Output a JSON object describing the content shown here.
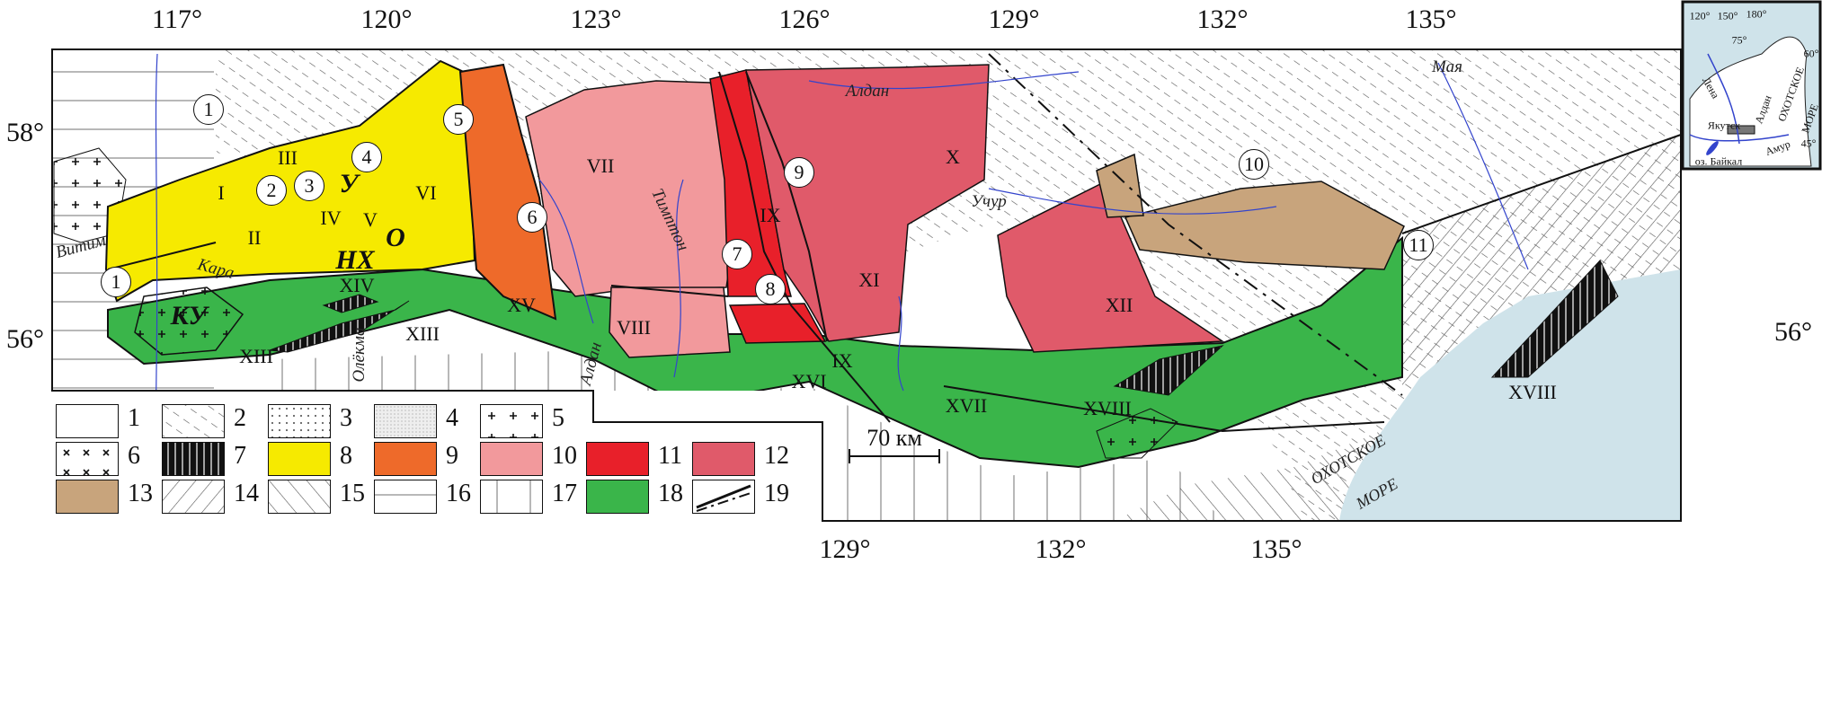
{
  "axes": {
    "top_longitudes": [
      "117°",
      "120°",
      "123°",
      "126°",
      "129°",
      "132°",
      "135°"
    ],
    "bottom_longitudes": [
      "129°",
      "132°",
      "135°"
    ],
    "left_latitudes": [
      "58°",
      "56°"
    ],
    "right_latitudes": [
      "56°"
    ]
  },
  "regions_roman": [
    "I",
    "II",
    "III",
    "IV",
    "V",
    "VI",
    "VII",
    "VIII",
    "IX",
    "IX",
    "X",
    "XI",
    "XII",
    "XIII",
    "XIII",
    "XIV",
    "XV",
    "XVI",
    "XVII",
    "XVIII",
    "XVIII"
  ],
  "circled_numbers": [
    "1",
    "1",
    "2",
    "3",
    "4",
    "5",
    "6",
    "7",
    "8",
    "9",
    "10",
    "11"
  ],
  "block_labels": [
    "У",
    "О",
    "НХ",
    "КУ"
  ],
  "rivers": [
    "Витим",
    "Кара",
    "Олёкма",
    "Алдан",
    "Тимптон",
    "Учур",
    "Алдан",
    "Мая"
  ],
  "sea_label": [
    "ОХОТСКОЕ",
    "МОРЕ"
  ],
  "scale_bar": "70 км",
  "legend": [
    {
      "num": "1",
      "fill": "#ffffff",
      "pattern": "none"
    },
    {
      "num": "2",
      "fill": "#ffffff",
      "pattern": "dash-diag"
    },
    {
      "num": "3",
      "fill": "#ffffff",
      "pattern": "dots"
    },
    {
      "num": "4",
      "fill": "#e8e8e8",
      "pattern": "fine-dots"
    },
    {
      "num": "5",
      "fill": "#ffffff",
      "pattern": "plus"
    },
    {
      "num": "6",
      "fill": "#ffffff",
      "pattern": "cross"
    },
    {
      "num": "7",
      "fill": "#111111",
      "pattern": "vertical-black"
    },
    {
      "num": "8",
      "fill": "#f6ea00",
      "pattern": "none"
    },
    {
      "num": "9",
      "fill": "#ee6a2a",
      "pattern": "none"
    },
    {
      "num": "10",
      "fill": "#f2999c",
      "pattern": "none"
    },
    {
      "num": "11",
      "fill": "#e8202a",
      "pattern": "none"
    },
    {
      "num": "12",
      "fill": "#e05a6a",
      "pattern": "none"
    },
    {
      "num": "13",
      "fill": "#c8a47c",
      "pattern": "none"
    },
    {
      "num": "14",
      "fill": "#ffffff",
      "pattern": "back-diag"
    },
    {
      "num": "15",
      "fill": "#ffffff",
      "pattern": "fwd-diag"
    },
    {
      "num": "16",
      "fill": "#ffffff",
      "pattern": "horizontal"
    },
    {
      "num": "17",
      "fill": "#ffffff",
      "pattern": "vertical"
    },
    {
      "num": "18",
      "fill": "#3ab54a",
      "pattern": "none"
    },
    {
      "num": "19",
      "fill": "#ffffff",
      "pattern": "lines"
    }
  ],
  "inset": {
    "graticule": [
      "120°",
      "150°",
      "180°",
      "75°",
      "60°",
      "45°"
    ],
    "labels": [
      "Лена",
      "Алдан",
      "Якутск",
      "ОХОТСКОЕ",
      "МОРЕ",
      "оз. Байкал",
      "Амур"
    ]
  },
  "colors": {
    "sea": "#cfe3ea",
    "river": "#3344cc",
    "green": "#3ab54a",
    "yellow": "#f6ea00",
    "orange": "#ee6a2a",
    "pink": "#f2999c",
    "red": "#e8202a",
    "darkpink": "#e05a6a",
    "tan": "#c8a47c"
  }
}
